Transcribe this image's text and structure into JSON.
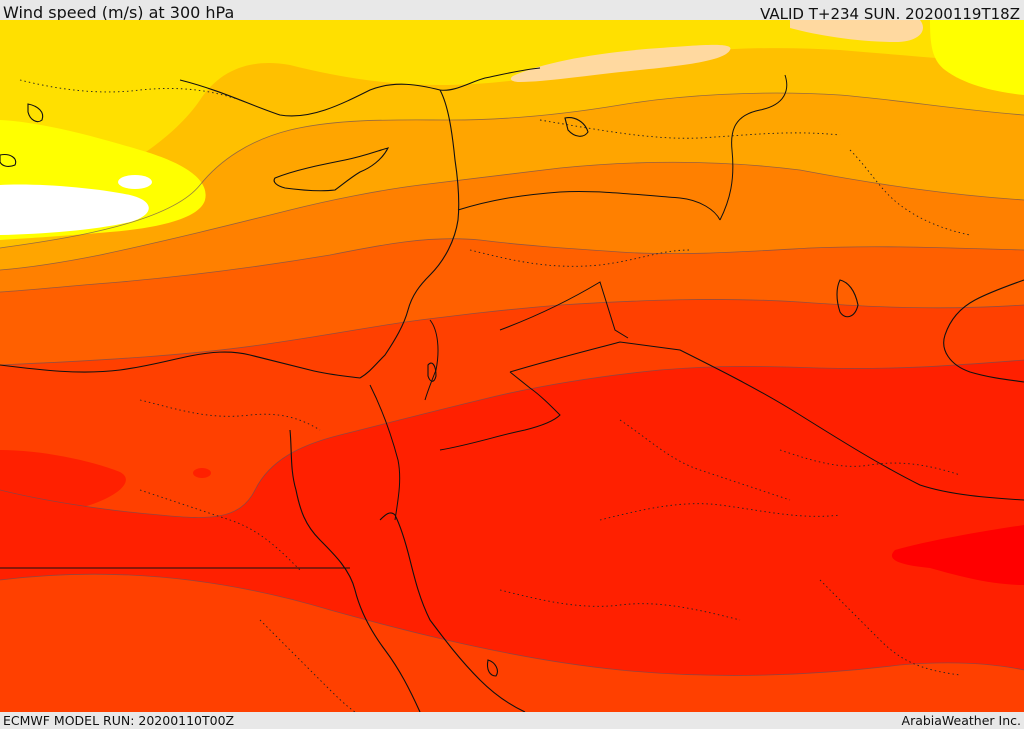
{
  "header": {
    "title": "Wind speed (m/s) at 300 hPa",
    "valid_time": "VALID T+234 SUN. 20200119T18Z"
  },
  "footer": {
    "model_run": "ECMWF MODEL RUN: 20200110T00Z",
    "credit": "ArabiaWeather Inc."
  },
  "map": {
    "field": "wind speed at 300 hPa",
    "fill_colors": [
      "#ffffff",
      "#ffff00",
      "#ffe000",
      "#ffc000",
      "#ffa500",
      "#ff8000",
      "#ff6000",
      "#ff4000",
      "#ff2000",
      "#ff0000",
      "#ffd9a0"
    ]
  }
}
